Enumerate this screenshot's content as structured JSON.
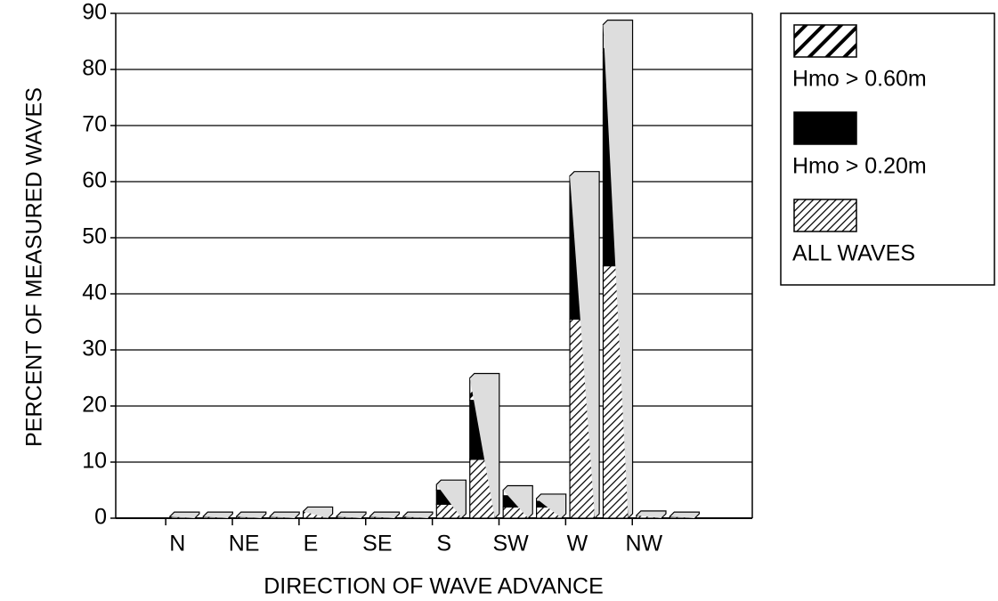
{
  "chart_data": {
    "type": "bar",
    "stacked": true,
    "xlabel": "DIRECTION OF WAVE ADVANCE",
    "ylabel": "PERCENT OF MEASURED WAVES",
    "categories": [
      "N",
      null,
      "NE",
      null,
      "E",
      null,
      "SE",
      null,
      "S",
      null,
      "SW",
      null,
      "W",
      null,
      "NW",
      null
    ],
    "series": [
      {
        "name": "ALL WAVES",
        "color": "#000000",
        "pattern": "fine-hatch",
        "values": [
          0.3,
          0.3,
          0.3,
          0.3,
          1.2,
          0.3,
          0.3,
          0.3,
          2.5,
          10.5,
          2,
          2,
          35.5,
          45,
          0.5,
          0.3
        ]
      },
      {
        "name": "Hmo > 0.20m",
        "color": "#000000",
        "pattern": "solid",
        "values": [
          0,
          0,
          0,
          0,
          0,
          0,
          0,
          0,
          2.5,
          10.5,
          2,
          1,
          24.5,
          38,
          0,
          0
        ]
      },
      {
        "name": "Hmo > 0.60m",
        "color": "#000000",
        "pattern": "wide-hatch",
        "values": [
          0,
          0,
          0,
          0,
          0,
          0,
          0,
          0,
          1,
          4,
          1,
          0.5,
          1,
          5,
          0,
          0
        ]
      }
    ],
    "ylim": [
      0,
      90
    ],
    "yticks": [
      0,
      10,
      20,
      30,
      40,
      50,
      60,
      70,
      80,
      90
    ],
    "grid": true,
    "legend": "right"
  }
}
